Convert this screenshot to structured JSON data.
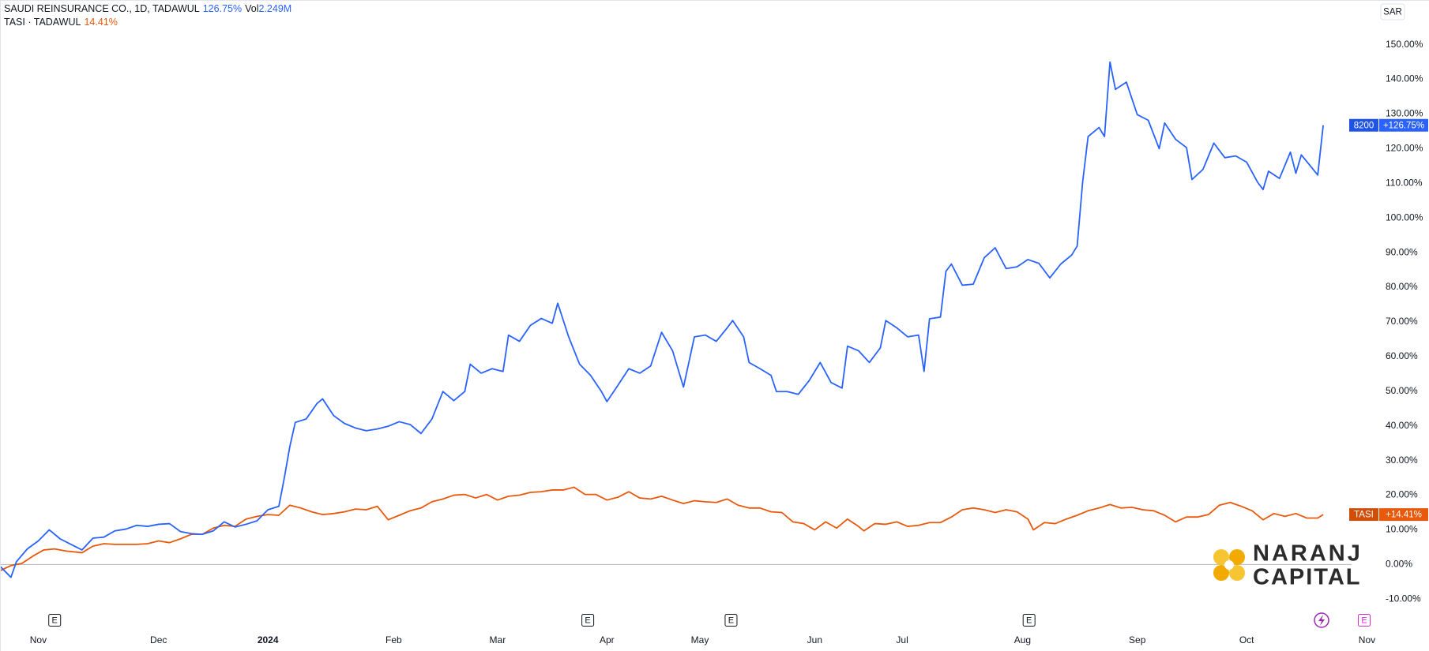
{
  "chart_data": {
    "type": "line",
    "currency": "SAR",
    "xlim": [
      0,
      252
    ],
    "ylim": [
      -12.6,
      162.9
    ],
    "xticks": [
      {
        "value": 7,
        "label": "Nov"
      },
      {
        "value": 29,
        "label": "Dec"
      },
      {
        "value": 49,
        "label": "2024"
      },
      {
        "value": 72,
        "label": "Feb"
      },
      {
        "value": 91,
        "label": "Mar"
      },
      {
        "value": 111,
        "label": "Apr"
      },
      {
        "value": 128,
        "label": "May"
      },
      {
        "value": 149,
        "label": "Jun"
      },
      {
        "value": 165,
        "label": "Jul"
      },
      {
        "value": 187,
        "label": "Aug"
      },
      {
        "value": 208,
        "label": "Sep"
      },
      {
        "value": 228,
        "label": "Oct"
      },
      {
        "value": 250,
        "label": "Nov"
      }
    ],
    "yticks": [
      {
        "value": -10,
        "label": "-10.00%"
      },
      {
        "value": 0,
        "label": "0.00%"
      },
      {
        "value": 10,
        "label": "10.00%"
      },
      {
        "value": 20,
        "label": "20.00%"
      },
      {
        "value": 30,
        "label": "30.00%"
      },
      {
        "value": 40,
        "label": "40.00%"
      },
      {
        "value": 50,
        "label": "50.00%"
      },
      {
        "value": 60,
        "label": "60.00%"
      },
      {
        "value": 70,
        "label": "70.00%"
      },
      {
        "value": 80,
        "label": "80.00%"
      },
      {
        "value": 90,
        "label": "90.00%"
      },
      {
        "value": 100,
        "label": "100.00%"
      },
      {
        "value": 110,
        "label": "110.00%"
      },
      {
        "value": 120,
        "label": "120.00%"
      },
      {
        "value": 130,
        "label": "130.00%"
      },
      {
        "value": 140,
        "label": "140.00%"
      },
      {
        "value": 150,
        "label": "150.00%"
      }
    ],
    "grid": false,
    "events": [
      {
        "x": 10,
        "label": "E",
        "color": "#131722"
      },
      {
        "x": 107.5,
        "label": "E",
        "color": "#131722"
      },
      {
        "x": 133.7,
        "label": "E",
        "color": "#131722"
      },
      {
        "x": 188.2,
        "label": "E",
        "color": "#131722"
      },
      {
        "x": 249.5,
        "label": "E",
        "color": "#d62bd0"
      }
    ],
    "series": [
      {
        "name": "SAUDI REINSURANCE CO., 1D, TADAWUL",
        "change_label": "126.75%",
        "volume_prefix": "Vol",
        "volume": "2.249M",
        "ticker": "8200",
        "last_label": "+126.75%",
        "color": "#2962ff",
        "badge_color": "#1e53e5",
        "x": [
          0,
          2,
          3,
          5,
          7,
          9,
          11,
          13,
          15,
          17,
          19,
          21,
          23,
          25,
          27,
          29,
          31,
          33,
          35,
          37,
          39,
          41,
          43,
          45,
          47,
          49,
          51,
          52,
          53,
          54,
          56,
          58,
          59,
          61,
          63,
          65,
          67,
          69,
          71,
          73,
          75,
          77,
          79,
          81,
          83,
          85,
          86,
          88,
          90,
          92,
          93,
          95,
          97,
          99,
          101,
          102,
          104,
          106,
          108,
          110,
          111,
          113,
          115,
          117,
          119,
          121,
          123,
          125,
          127,
          129,
          131,
          133,
          134,
          136,
          137,
          139,
          141,
          142,
          144,
          146,
          148,
          150,
          152,
          154,
          155,
          157,
          159,
          161,
          162,
          164,
          166,
          168,
          169,
          170,
          172,
          173,
          174,
          176,
          178,
          180,
          182,
          184,
          186,
          188,
          190,
          192,
          194,
          196,
          197,
          198,
          199,
          201,
          202,
          203,
          204,
          206,
          208,
          210,
          212,
          213,
          215,
          217,
          218,
          220,
          222,
          224,
          226,
          228,
          230,
          231,
          232,
          234,
          236,
          237,
          238,
          241,
          242
        ],
        "values": [
          -0.5,
          -3.7,
          0.8,
          4.5,
          6.8,
          10,
          7.4,
          5.8,
          4.2,
          7.6,
          7.9,
          9.7,
          10.2,
          11.3,
          11,
          11.6,
          11.8,
          9.5,
          8.9,
          8.7,
          9.7,
          12.3,
          10.8,
          11.6,
          12.6,
          15.8,
          16.8,
          25,
          34,
          41,
          42,
          46.5,
          47.8,
          43,
          40.7,
          39.4,
          38.6,
          39.1,
          39.9,
          41.2,
          40.4,
          37.8,
          42,
          49.9,
          47.3,
          49.9,
          57.8,
          55.2,
          56.5,
          55.7,
          66.2,
          64.4,
          69,
          71,
          69.6,
          75.4,
          65.7,
          57.8,
          54.6,
          49.9,
          47,
          51.7,
          56.5,
          55.2,
          57.3,
          67,
          61.7,
          51.2,
          65.7,
          66.2,
          64.4,
          68.3,
          70.4,
          65.7,
          58.3,
          56.5,
          54.6,
          49.9,
          49.9,
          49.1,
          53.1,
          58.3,
          52.5,
          50.9,
          63,
          61.7,
          58.3,
          62.5,
          70.4,
          68.3,
          65.7,
          66.2,
          55.7,
          70.9,
          71.4,
          84.6,
          86.7,
          80.6,
          80.9,
          88.5,
          91.4,
          85.4,
          85.9,
          88,
          86.9,
          82.7,
          86.7,
          89.3,
          91.9,
          110.3,
          123.5,
          126.1,
          123.5,
          145,
          137.1,
          139.2,
          129.8,
          128.2,
          120,
          127.4,
          122.7,
          120.3,
          111.1,
          114,
          121.6,
          117.4,
          117.9,
          116.1,
          110.3,
          108.2,
          113.5,
          111.4,
          119,
          112.9,
          118.2,
          112.4,
          126.75
        ]
      },
      {
        "name": "TASI · TADAWUL",
        "change_label": "14.41%",
        "ticker": "TASI",
        "last_label": "+14.41%",
        "color": "#e8590c",
        "badge_color": "#d14e08",
        "x": [
          0,
          2,
          4,
          6,
          8,
          10,
          12,
          15,
          17,
          19,
          21,
          23,
          25,
          27,
          29,
          31,
          33,
          35,
          37,
          39,
          41,
          43,
          45,
          47,
          49,
          51,
          53,
          55,
          57,
          59,
          61,
          63,
          65,
          67,
          69,
          71,
          73,
          75,
          77,
          79,
          81,
          83,
          85,
          87,
          89,
          91,
          93,
          95,
          97,
          99,
          101,
          103,
          105,
          107,
          109,
          111,
          113,
          115,
          117,
          119,
          121,
          123,
          125,
          127,
          129,
          131,
          133,
          135,
          137,
          139,
          141,
          143,
          145,
          147,
          149,
          151,
          153,
          155,
          157,
          158,
          160,
          162,
          164,
          166,
          168,
          170,
          172,
          174,
          176,
          178,
          180,
          182,
          184,
          186,
          188,
          189,
          191,
          193,
          195,
          197,
          199,
          201,
          203,
          205,
          207,
          209,
          211,
          213,
          215,
          217,
          219,
          221,
          223,
          225,
          227,
          229,
          231,
          233,
          235,
          237,
          239,
          241,
          242
        ],
        "values": [
          -1.8,
          -0.3,
          0.3,
          2.4,
          4.2,
          4.5,
          3.9,
          3.4,
          5.3,
          6,
          5.8,
          5.8,
          5.8,
          6,
          6.8,
          6.3,
          7.4,
          8.7,
          8.7,
          10.5,
          11.3,
          11,
          13.1,
          13.9,
          14.4,
          14.2,
          17.1,
          16.3,
          15.2,
          14.4,
          14.7,
          15.2,
          16,
          15.8,
          16.8,
          12.9,
          14.2,
          15.5,
          16.3,
          18.1,
          18.9,
          20,
          20.2,
          19.2,
          20.2,
          18.6,
          19.7,
          20,
          20.8,
          21,
          21.5,
          21.5,
          22.3,
          20.2,
          20.2,
          18.6,
          19.4,
          21,
          19.2,
          18.9,
          19.7,
          18.6,
          17.6,
          18.4,
          18.1,
          17.9,
          18.9,
          17.1,
          16.3,
          16.3,
          15.2,
          15,
          12.3,
          11.8,
          10,
          12.3,
          10.5,
          13.1,
          11,
          9.7,
          11.8,
          11.6,
          12.3,
          11,
          11.3,
          12.1,
          12.1,
          13.7,
          15.8,
          16.3,
          15.8,
          15,
          15.8,
          15.2,
          13.1,
          10,
          12.1,
          11.8,
          13.1,
          14.2,
          15.5,
          16.3,
          17.3,
          16.3,
          16.5,
          15.8,
          15.5,
          14.2,
          12.3,
          13.7,
          13.7,
          14.4,
          17.1,
          17.9,
          16.8,
          15.5,
          12.9,
          14.7,
          13.9,
          14.7,
          13.4,
          13.4,
          14.41
        ]
      }
    ],
    "logo": [
      "NARANJ",
      "CAPITAL"
    ]
  }
}
